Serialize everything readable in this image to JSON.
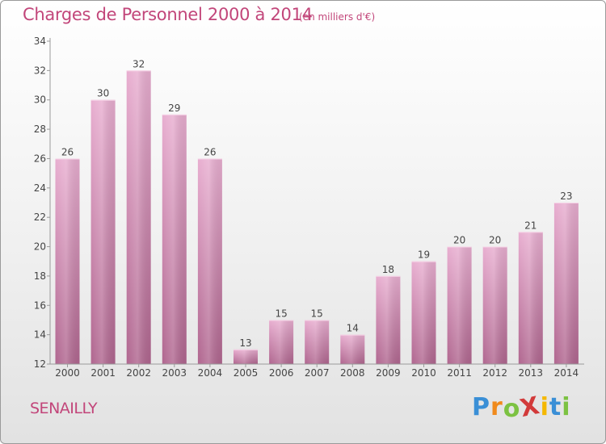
{
  "chart_data": {
    "type": "bar",
    "title": "Charges de Personnel 2000 à 2014",
    "subtitle": "(en milliers d'€)",
    "categories": [
      "2000",
      "2001",
      "2002",
      "2003",
      "2004",
      "2005",
      "2006",
      "2007",
      "2008",
      "2009",
      "2010",
      "2011",
      "2012",
      "2013",
      "2014"
    ],
    "values": [
      26,
      30,
      32,
      29,
      26,
      13,
      15,
      15,
      14,
      18,
      19,
      20,
      20,
      21,
      23
    ],
    "ylim": [
      12,
      34
    ],
    "yticks": [
      12,
      14,
      16,
      18,
      20,
      22,
      24,
      26,
      28,
      30,
      32,
      34
    ],
    "grid": false,
    "colors": {
      "bar_light": "#e8aed0",
      "bar_dark": "#b0668f",
      "text": "#444444",
      "title": "#c2467a"
    }
  },
  "commune": "SENAILLY",
  "logo": {
    "text": "ProXiti",
    "letters": [
      "P",
      "r",
      "o",
      "X",
      "i",
      "t",
      "i"
    ],
    "letter_colors": [
      "#3a8fd6",
      "#f08a1c",
      "#7cc242",
      "#d23a3a",
      "#f5b800",
      "#3a8fd6",
      "#7cc242"
    ]
  }
}
